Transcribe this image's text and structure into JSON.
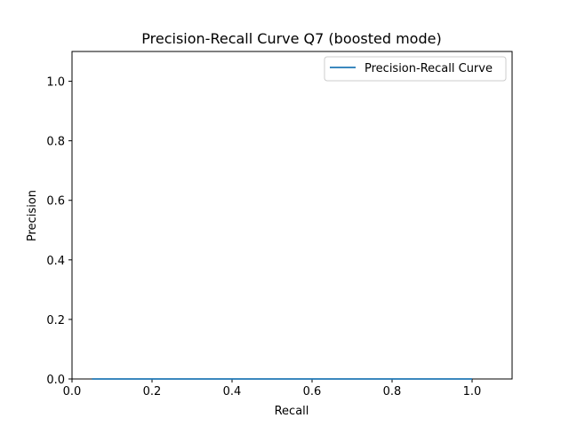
{
  "chart_data": {
    "type": "line",
    "title": "Precision-Recall Curve Q7 (boosted mode)",
    "xlabel": "Recall",
    "ylabel": "Precision",
    "xlim": [
      0.0,
      1.1
    ],
    "ylim": [
      0.0,
      1.1
    ],
    "xticks": [
      "0.0",
      "0.2",
      "0.4",
      "0.6",
      "0.8",
      "1.0"
    ],
    "yticks": [
      "0.0",
      "0.2",
      "0.4",
      "0.6",
      "0.8",
      "1.0"
    ],
    "grid": false,
    "legend_position": "top-right",
    "series": [
      {
        "name": "Precision-Recall Curve",
        "color": "#1f77b4",
        "x": [
          0.05,
          0.2,
          0.4,
          0.6,
          0.8,
          1.0
        ],
        "y": [
          0.0,
          0.0,
          0.0,
          0.0,
          0.0,
          0.0
        ]
      }
    ]
  }
}
